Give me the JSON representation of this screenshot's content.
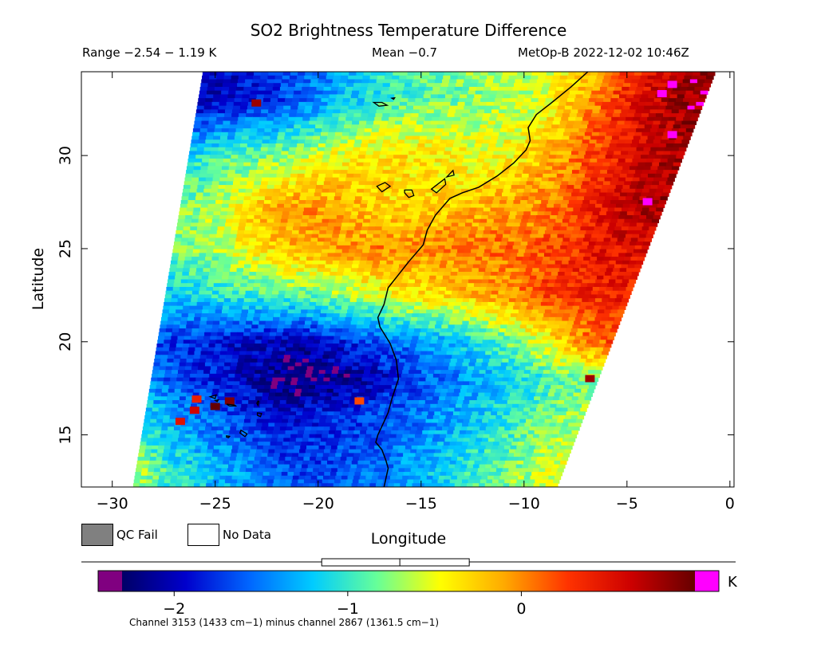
{
  "header": {
    "title": "SO2 Brightness Temperature Difference",
    "range": "Range −2.54 − 1.19 K",
    "mean": "Mean −0.7",
    "satellite_time": "MetOp-B 2022-12-02 10:46Z"
  },
  "legend": {
    "qc_fail": "QC Fail",
    "no_data": "No Data",
    "qc_fail_color": "#808080",
    "no_data_color": "#ffffff"
  },
  "colorbar": {
    "unit": "K",
    "caption": "Channel 3153 (1433 cm−1) minus channel 2867 (1361.5 cm−1)",
    "ticks": [
      {
        "value": -2,
        "label": "−2"
      },
      {
        "value": -1,
        "label": "−1"
      },
      {
        "value": 0,
        "label": "0"
      }
    ],
    "range": [
      -2.3,
      1.0
    ],
    "under_color": "#800080",
    "over_color": "#ff00ff",
    "stops": [
      "#000066",
      "#0000cc",
      "#0066ff",
      "#00ccff",
      "#66ff99",
      "#ffff00",
      "#ffaa00",
      "#ff3300",
      "#cc0000",
      "#660000"
    ],
    "distribution": {
      "min": -1.15,
      "q1": -1.15,
      "median": -0.7,
      "q3": -0.3,
      "max": -0.3
    }
  },
  "chart_data": {
    "type": "heatmap",
    "title": "SO2 Brightness Temperature Difference",
    "xlabel": "Longitude",
    "ylabel": "Latitude",
    "xlim": [
      -31.5,
      0.2
    ],
    "ylim": [
      12.2,
      34.5
    ],
    "xticks": [
      {
        "value": -30,
        "label": "−30"
      },
      {
        "value": -25,
        "label": "−25"
      },
      {
        "value": -20,
        "label": "−20"
      },
      {
        "value": -15,
        "label": "−15"
      },
      {
        "value": -10,
        "label": "−10"
      },
      {
        "value": -5,
        "label": "−5"
      },
      {
        "value": 0,
        "label": "0"
      }
    ],
    "yticks": [
      {
        "value": 15,
        "label": "15"
      },
      {
        "value": 20,
        "label": "20"
      },
      {
        "value": 25,
        "label": "25"
      },
      {
        "value": 30,
        "label": "30"
      }
    ],
    "value_range_K": [
      -2.54,
      1.19
    ],
    "mean_K": -0.7,
    "swath_corners": {
      "top_left": [
        -25.6,
        34.5
      ],
      "top_right": [
        -0.7,
        34.5
      ],
      "bottom_left": [
        -29.0,
        12.2
      ],
      "bottom_right": [
        -8.4,
        12.2
      ]
    },
    "field_rows": [
      {
        "lat": 33.0,
        "values": [
          -2.0,
          -1.9,
          -1.7,
          -1.4,
          -1.1,
          -0.9,
          -0.8,
          -0.7,
          -0.6,
          -0.2,
          0.3,
          0.7,
          0.9
        ]
      },
      {
        "lat": 30.0,
        "values": [
          -1.1,
          -0.9,
          -0.8,
          -0.6,
          -0.4,
          -0.3,
          -0.4,
          -0.5,
          -0.4,
          -0.1,
          0.3,
          0.6,
          0.8
        ]
      },
      {
        "lat": 27.0,
        "values": [
          -0.8,
          -0.6,
          -0.2,
          0.0,
          -0.1,
          -0.3,
          -0.3,
          -0.2,
          -0.1,
          0.0,
          0.3,
          0.6,
          0.8
        ]
      },
      {
        "lat": 25.0,
        "values": [
          -0.8,
          -0.7,
          -0.4,
          -0.2,
          -0.1,
          0.0,
          0.0,
          0.0,
          0.1,
          0.1,
          0.3,
          0.5,
          0.5
        ]
      },
      {
        "lat": 22.5,
        "values": [
          -1.2,
          -1.1,
          -1.0,
          -0.9,
          -0.8,
          -0.6,
          -0.4,
          -0.3,
          -0.2,
          0.0,
          0.3,
          0.4,
          0.4
        ]
      },
      {
        "lat": 20.0,
        "values": [
          -1.7,
          -1.8,
          -1.9,
          -2.0,
          -2.0,
          -1.8,
          -1.6,
          -1.4,
          -1.2,
          -0.9,
          -0.6,
          -0.1,
          0.2
        ]
      },
      {
        "lat": 18.0,
        "values": [
          -1.5,
          -1.7,
          -1.9,
          -2.1,
          -2.3,
          -2.2,
          -2.0,
          -1.7,
          -1.5,
          -1.3,
          -1.1,
          -0.9,
          -0.8
        ]
      },
      {
        "lat": 16.0,
        "values": [
          -1.1,
          -1.4,
          -1.6,
          -1.8,
          -1.9,
          -1.8,
          -1.7,
          -1.6,
          -1.4,
          -1.2,
          -1.0,
          -0.8,
          -0.7
        ]
      },
      {
        "lat": 13.0,
        "values": [
          -0.6,
          -1.0,
          -1.2,
          -1.4,
          -1.6,
          -1.7,
          -1.6,
          -1.5,
          -1.3,
          -1.1,
          -0.9,
          -0.7,
          -0.5
        ]
      }
    ],
    "coastline": [
      [
        -6.9,
        34.5
      ],
      [
        -7.7,
        33.7
      ],
      [
        -8.7,
        32.8
      ],
      [
        -9.4,
        32.2
      ],
      [
        -9.8,
        31.5
      ],
      [
        -9.7,
        30.8
      ],
      [
        -9.9,
        30.3
      ],
      [
        -10.5,
        29.6
      ],
      [
        -11.3,
        28.9
      ],
      [
        -12.2,
        28.3
      ],
      [
        -13.0,
        28.0
      ],
      [
        -13.6,
        27.7
      ],
      [
        -14.3,
        26.8
      ],
      [
        -14.7,
        26.0
      ],
      [
        -14.9,
        25.2
      ],
      [
        -15.6,
        24.3
      ],
      [
        -16.1,
        23.6
      ],
      [
        -16.6,
        22.9
      ],
      [
        -16.8,
        22.0
      ],
      [
        -17.1,
        21.3
      ],
      [
        -17.0,
        20.8
      ],
      [
        -16.5,
        19.9
      ],
      [
        -16.2,
        19.0
      ],
      [
        -16.1,
        18.0
      ],
      [
        -16.4,
        17.0
      ],
      [
        -16.6,
        16.2
      ],
      [
        -16.8,
        15.7
      ],
      [
        -17.1,
        15.0
      ],
      [
        -17.2,
        14.6
      ],
      [
        -16.9,
        14.2
      ],
      [
        -16.7,
        13.6
      ],
      [
        -16.6,
        13.2
      ],
      [
        -16.8,
        12.2
      ]
    ],
    "islands": [
      {
        "name": "Madeira",
        "outline": [
          [
            -17.3,
            32.85
          ],
          [
            -16.9,
            32.85
          ],
          [
            -16.65,
            32.7
          ],
          [
            -17.05,
            32.65
          ],
          [
            -17.3,
            32.85
          ]
        ]
      },
      {
        "name": "Porto Santo",
        "outline": [
          [
            -16.42,
            33.08
          ],
          [
            -16.28,
            33.1
          ],
          [
            -16.33,
            33.02
          ]
        ]
      },
      {
        "name": "Tenerife",
        "outline": [
          [
            -17.15,
            28.35
          ],
          [
            -16.75,
            28.55
          ],
          [
            -16.5,
            28.35
          ],
          [
            -16.9,
            28.05
          ],
          [
            -17.15,
            28.35
          ]
        ]
      },
      {
        "name": "Gran Canaria",
        "outline": [
          [
            -15.8,
            28.15
          ],
          [
            -15.45,
            28.15
          ],
          [
            -15.35,
            27.85
          ],
          [
            -15.6,
            27.75
          ],
          [
            -15.8,
            28.0
          ],
          [
            -15.8,
            28.15
          ]
        ]
      },
      {
        "name": "Fuerteventura",
        "outline": [
          [
            -14.5,
            28.2
          ],
          [
            -13.85,
            28.75
          ],
          [
            -13.8,
            28.45
          ],
          [
            -14.25,
            28.0
          ],
          [
            -14.5,
            28.2
          ]
        ]
      },
      {
        "name": "Lanzarote",
        "outline": [
          [
            -13.75,
            28.85
          ],
          [
            -13.45,
            29.2
          ],
          [
            -13.4,
            28.95
          ],
          [
            -13.75,
            28.85
          ]
        ]
      },
      {
        "name": "Santo Antao",
        "outline": [
          [
            -25.25,
            17.05
          ],
          [
            -24.95,
            17.15
          ],
          [
            -25.0,
            16.95
          ],
          [
            -25.25,
            17.05
          ]
        ]
      },
      {
        "name": "Sao Vicente",
        "outline": [
          [
            -25.0,
            16.85
          ],
          [
            -24.85,
            16.88
          ],
          [
            -24.9,
            16.78
          ]
        ]
      },
      {
        "name": "Sao Nicolau",
        "outline": [
          [
            -24.45,
            16.65
          ],
          [
            -24.05,
            16.6
          ],
          [
            -24.0,
            16.55
          ],
          [
            -24.3,
            16.55
          ],
          [
            -24.45,
            16.65
          ]
        ]
      },
      {
        "name": "Sal",
        "outline": [
          [
            -22.92,
            16.82
          ],
          [
            -22.88,
            16.8
          ],
          [
            -22.92,
            16.58
          ],
          [
            -22.98,
            16.7
          ]
        ]
      },
      {
        "name": "Boa Vista",
        "outline": [
          [
            -22.95,
            16.18
          ],
          [
            -22.75,
            16.15
          ],
          [
            -22.8,
            15.98
          ],
          [
            -22.95,
            16.05
          ],
          [
            -22.95,
            16.18
          ]
        ]
      },
      {
        "name": "Santiago",
        "outline": [
          [
            -23.75,
            15.25
          ],
          [
            -23.45,
            15.05
          ],
          [
            -23.55,
            14.9
          ],
          [
            -23.8,
            15.1
          ],
          [
            -23.75,
            15.25
          ]
        ]
      },
      {
        "name": "Fogo",
        "outline": [
          [
            -24.45,
            14.95
          ],
          [
            -24.3,
            14.92
          ],
          [
            -24.35,
            14.85
          ],
          [
            -24.45,
            14.88
          ]
        ]
      }
    ],
    "hotspots": [
      {
        "lon": -25.0,
        "lat": 16.5,
        "value": 1.0
      },
      {
        "lon": -24.3,
        "lat": 16.8,
        "value": 0.9
      },
      {
        "lon": -26.0,
        "lat": 16.3,
        "value": 0.6
      },
      {
        "lon": -26.7,
        "lat": 15.7,
        "value": 0.5
      },
      {
        "lon": -25.9,
        "lat": 16.9,
        "value": 0.4
      },
      {
        "lon": -18.0,
        "lat": 16.8,
        "value": 0.2
      },
      {
        "lon": -6.8,
        "lat": 18.0,
        "value": 0.8
      },
      {
        "lon": -23.0,
        "lat": 32.8,
        "value": 0.8
      },
      {
        "lon": -4.0,
        "lat": 27.5,
        "value": 1.15
      },
      {
        "lon": -3.3,
        "lat": 33.3,
        "value": 1.15
      },
      {
        "lon": -2.8,
        "lat": 33.8,
        "value": 1.15
      },
      {
        "lon": -2.8,
        "lat": 31.1,
        "value": 1.15
      }
    ]
  }
}
